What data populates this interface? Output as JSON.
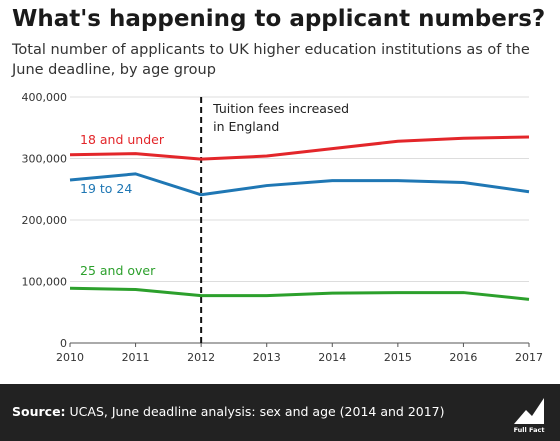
{
  "header": {
    "title": "What's happening to applicant numbers?",
    "subtitle": "Total number of applicants to UK higher education institutions as of the June deadline, by age group"
  },
  "annotation": {
    "text_line1": "Tuition fees increased",
    "text_line2": "in England",
    "x": 2012
  },
  "footer": {
    "source_prefix": "Source:",
    "source_text": " UCAS, June deadline analysis: sex and age (2014 and 2017)",
    "logo_text": "Full Fact"
  },
  "colors": {
    "18_and_under": "#e3262a",
    "19_to_24": "#1f77b4",
    "25_and_over": "#2ca02c",
    "footer_bg": "#222222"
  },
  "chart_data": {
    "type": "line",
    "title": "What's happening to applicant numbers?",
    "subtitle": "Total number of applicants to UK higher education institutions as of the June deadline, by age group",
    "x": [
      2010,
      2011,
      2012,
      2013,
      2014,
      2015,
      2016,
      2017
    ],
    "x_tick_labels": [
      "2010",
      "2011",
      "2012",
      "2013",
      "2014",
      "2015",
      "2016",
      "2017"
    ],
    "ylim": [
      0,
      400000
    ],
    "y_ticks": [
      0,
      100000,
      200000,
      300000,
      400000
    ],
    "y_tick_labels": [
      "0",
      "100,000",
      "200,000",
      "300,000",
      "400,000"
    ],
    "grid": true,
    "series": [
      {
        "name": "18 and under",
        "color": "#e3262a",
        "values": [
          306000,
          308000,
          299000,
          304000,
          316000,
          328000,
          333000,
          335000
        ]
      },
      {
        "name": "19 to 24",
        "color": "#1f77b4",
        "values": [
          265000,
          275000,
          241000,
          256000,
          264000,
          264000,
          261000,
          246000
        ]
      },
      {
        "name": "25 and over",
        "color": "#2ca02c",
        "values": [
          89000,
          87000,
          77000,
          77000,
          81000,
          82000,
          82000,
          71000
        ]
      }
    ]
  }
}
